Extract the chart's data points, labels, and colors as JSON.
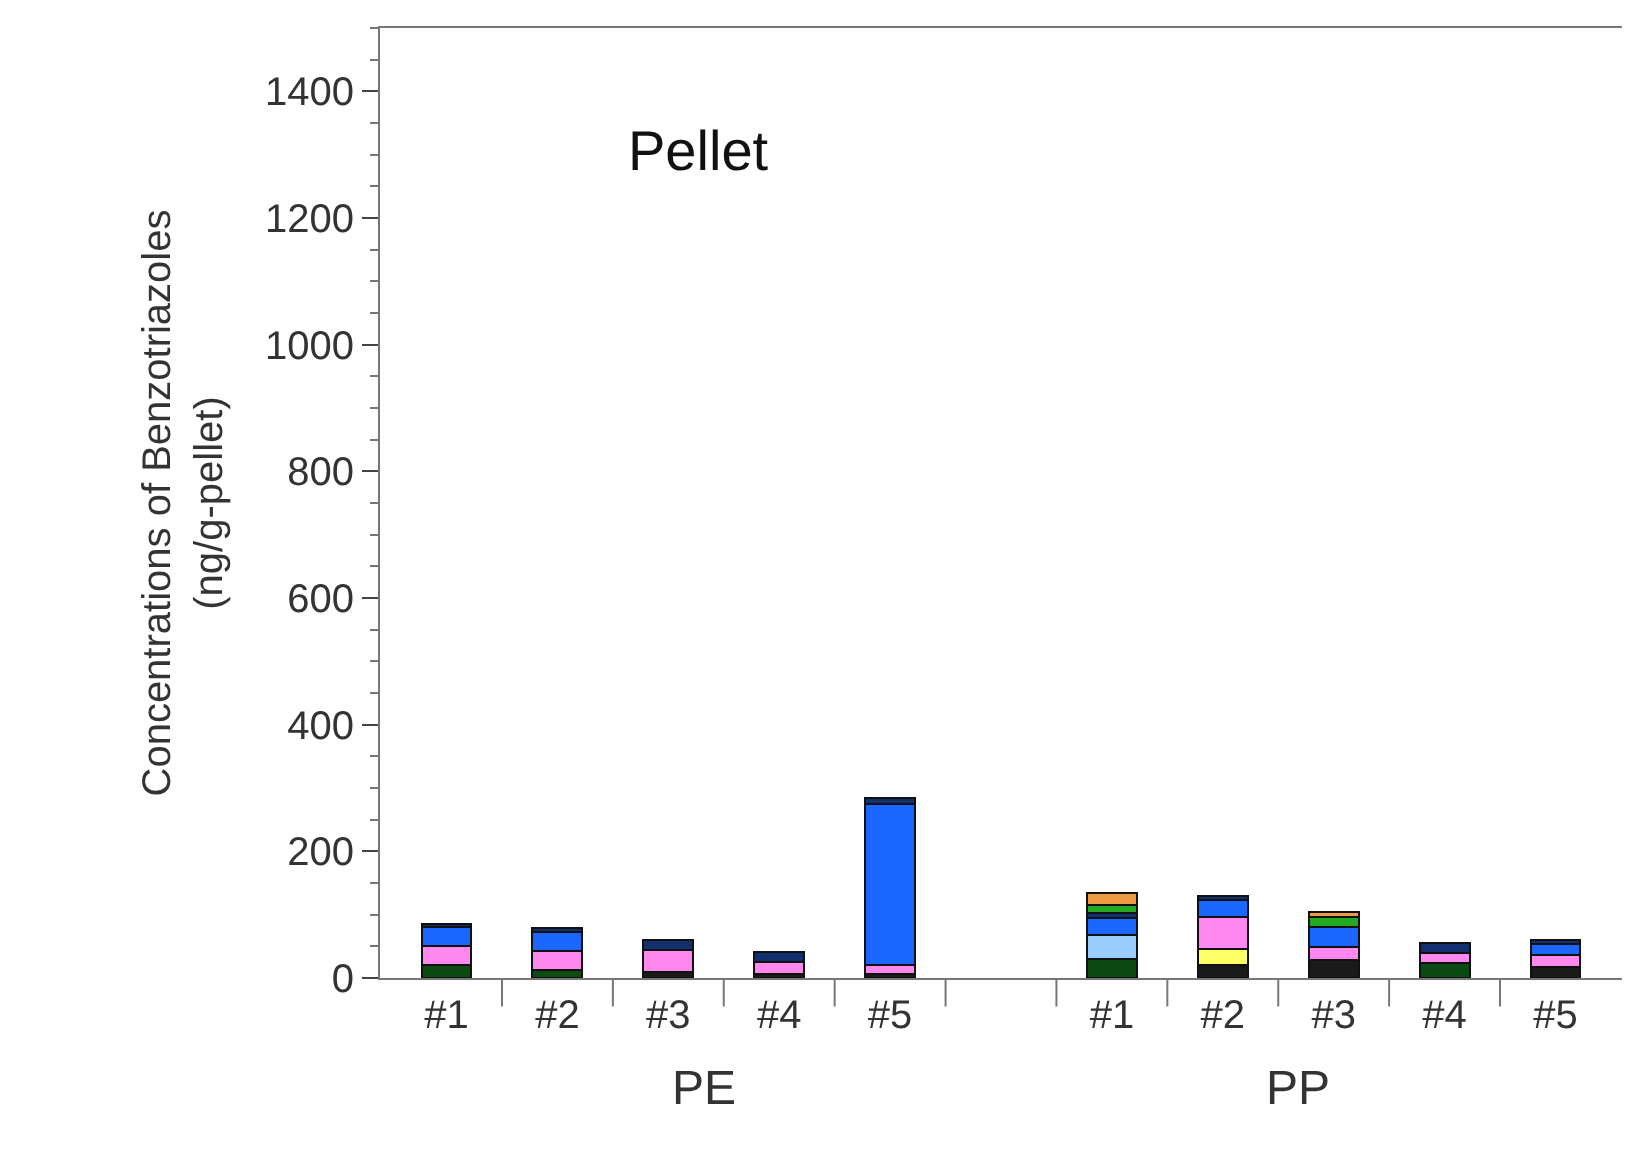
{
  "chart_data": {
    "type": "bar",
    "stacked": true,
    "ylabel": "Concentrations of Benzotriazoles\n(ng/g-pellet)",
    "annotations": [
      "Pellet",
      "PE",
      "PP"
    ],
    "categories": [
      "#1",
      "#2",
      "#3",
      "#4",
      "#5",
      null,
      "#1",
      "#2",
      "#3",
      "#4",
      "#5"
    ],
    "series": [
      {
        "color": "#0b4a12",
        "values": [
          21,
          13,
          null,
          null,
          null,
          null,
          30,
          null,
          null,
          23,
          null
        ]
      },
      {
        "color": "#1a1a1a",
        "values": [
          null,
          null,
          10,
          7,
          7,
          null,
          null,
          20,
          28,
          null,
          18
        ]
      },
      {
        "color": "#ffff66",
        "values": [
          null,
          null,
          null,
          null,
          null,
          null,
          null,
          26,
          null,
          null,
          null
        ]
      },
      {
        "color": "#ff88ee",
        "values": [
          30,
          29,
          34,
          19,
          13,
          null,
          null,
          51,
          21,
          16,
          19
        ]
      },
      {
        "color": "#99ccff",
        "values": [
          null,
          null,
          null,
          null,
          null,
          null,
          38,
          null,
          null,
          null,
          null
        ]
      },
      {
        "color": "#1a66ff",
        "values": [
          29,
          30,
          null,
          null,
          255,
          null,
          27,
          26,
          32,
          null,
          16
        ]
      },
      {
        "color": "#12306e",
        "values": [
          6,
          7,
          16,
          15,
          9,
          null,
          8,
          6,
          null,
          17,
          7
        ]
      },
      {
        "color": "#22aa22",
        "values": [
          null,
          null,
          null,
          null,
          null,
          null,
          12,
          null,
          15,
          null,
          null
        ]
      },
      {
        "color": "#ee9944",
        "values": [
          null,
          null,
          null,
          null,
          null,
          null,
          20,
          null,
          8,
          null,
          null
        ]
      }
    ],
    "ylim": [
      0,
      1500
    ],
    "yticks": [
      0,
      200,
      400,
      600,
      800,
      1000,
      1200,
      1400
    ]
  }
}
